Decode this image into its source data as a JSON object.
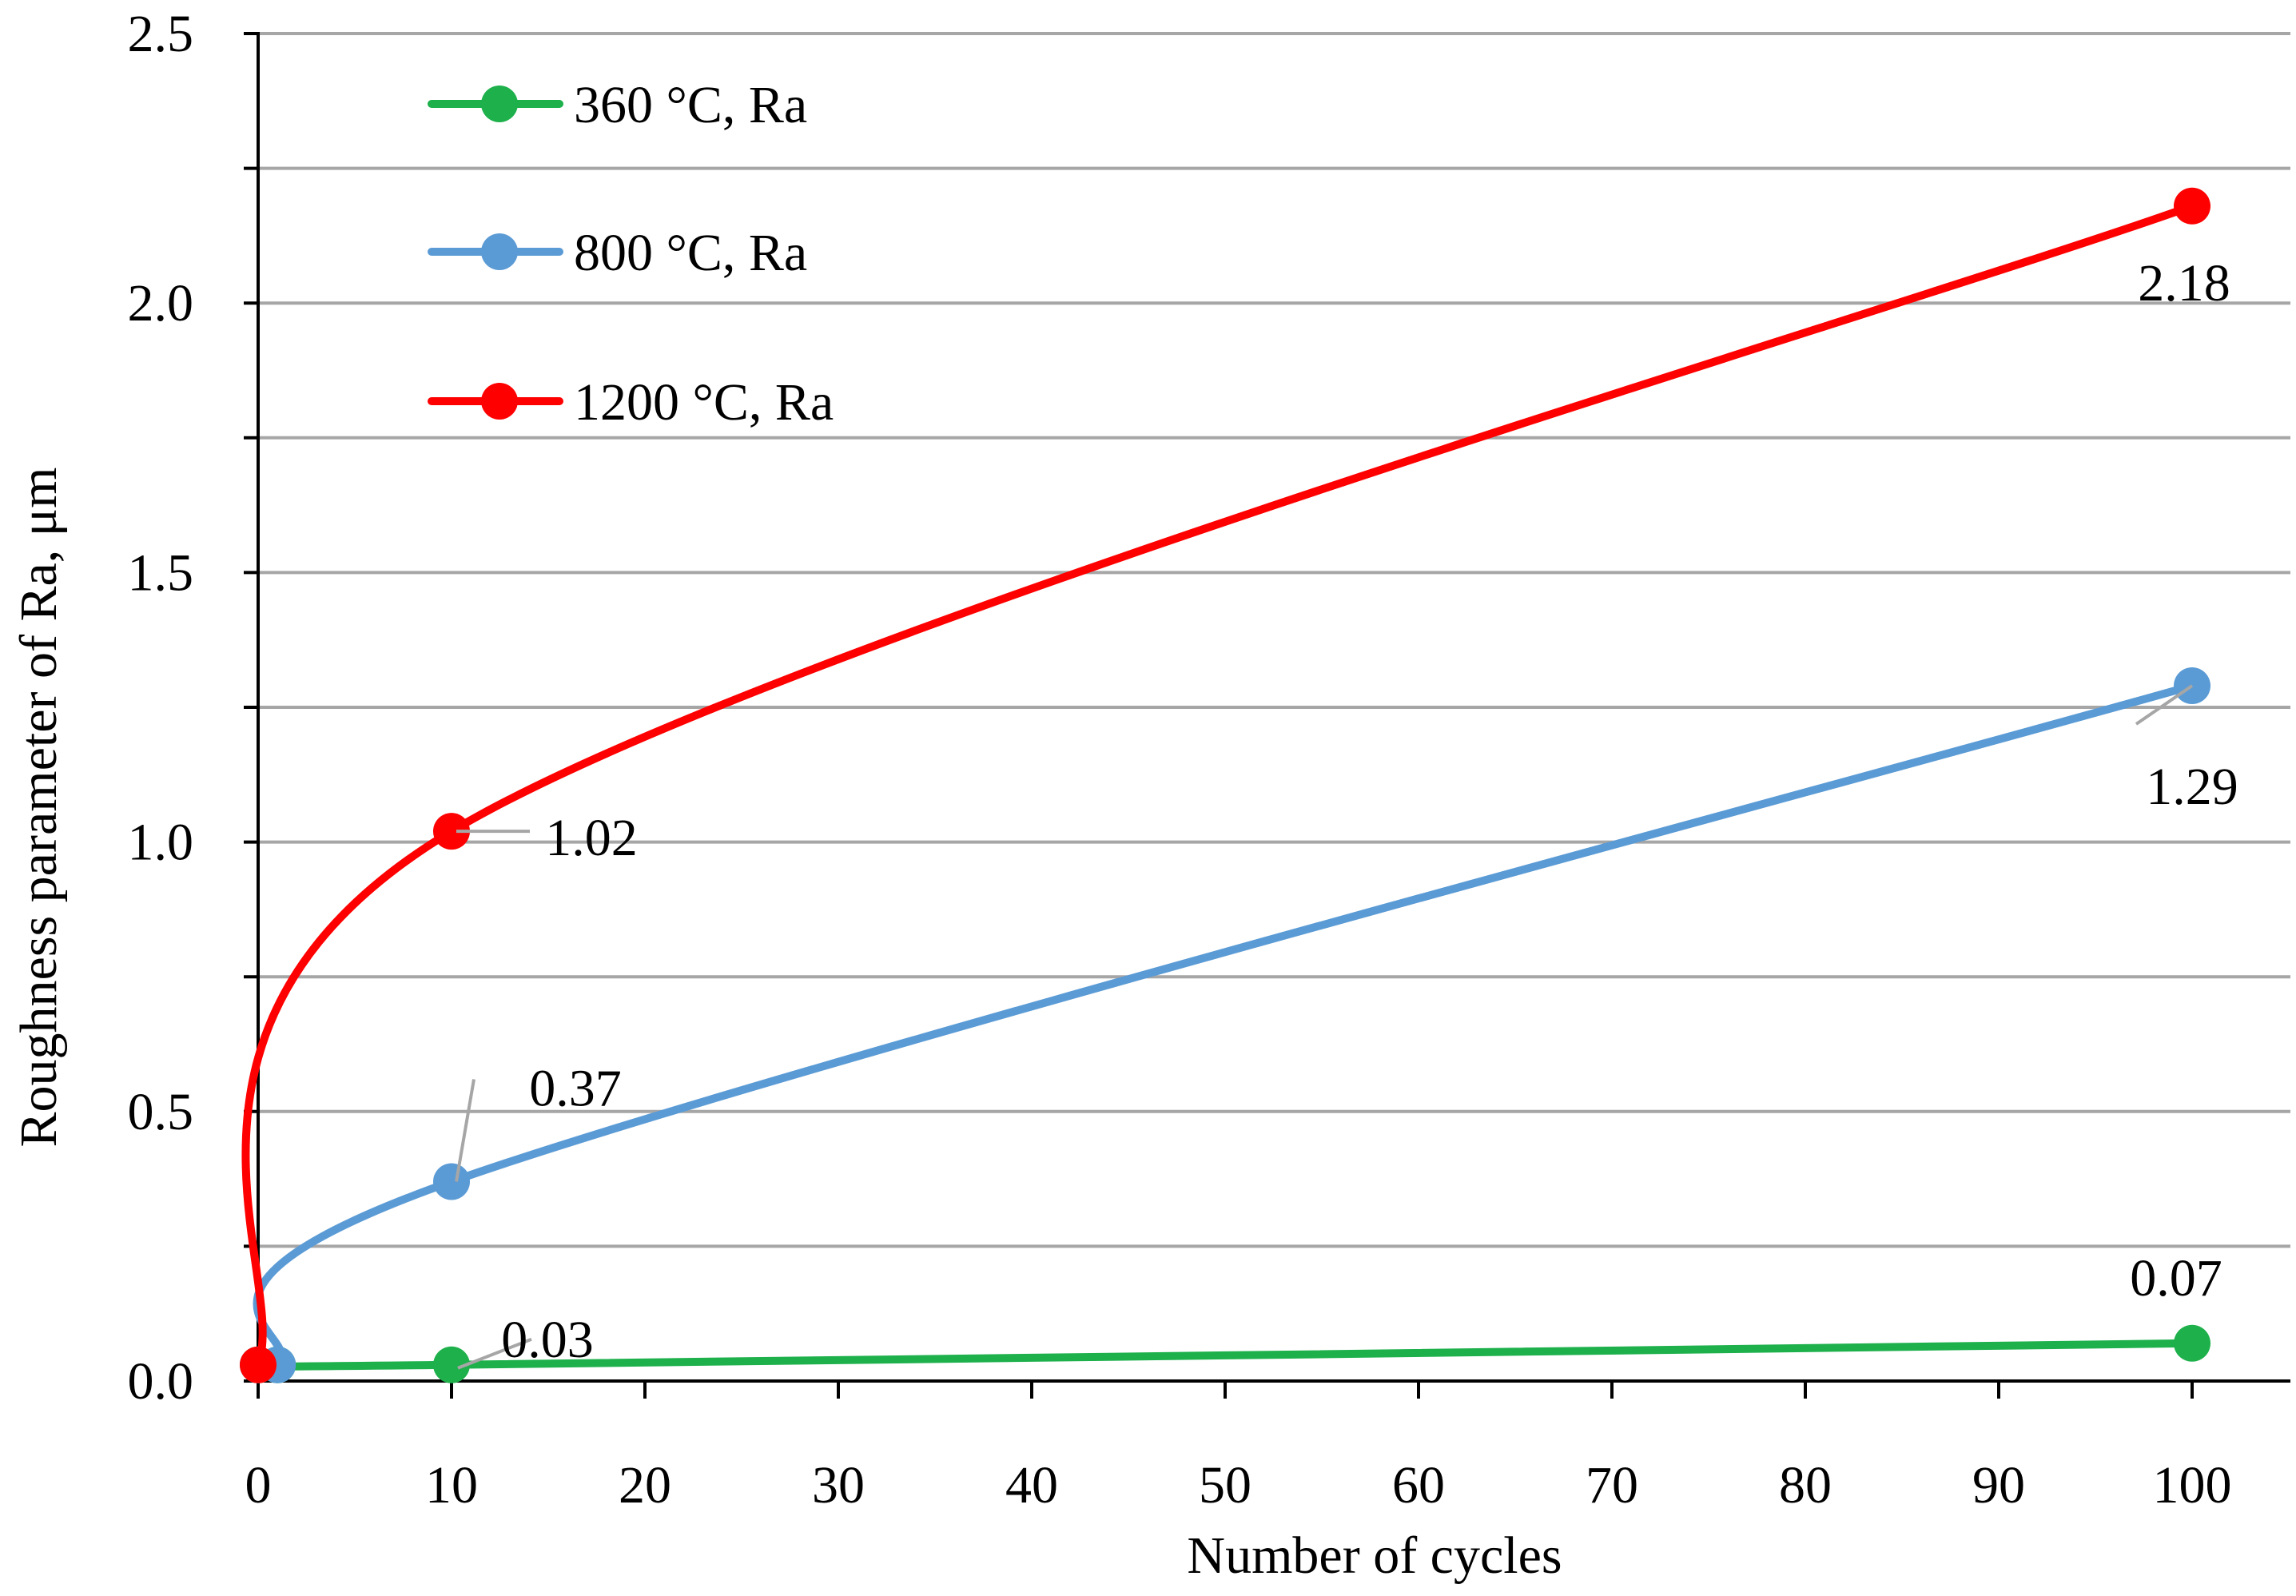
{
  "chart_data": {
    "type": "line",
    "title": "",
    "xlabel": "Number of cycles",
    "ylabel": "Roughness parameter of Ra, μm",
    "xlim": [
      0,
      100
    ],
    "ylim": [
      0,
      2.5
    ],
    "xticks": [
      0,
      10,
      20,
      30,
      40,
      50,
      60,
      70,
      80,
      90,
      100
    ],
    "yticks": [
      0.0,
      0.5,
      1.0,
      1.5,
      2.0,
      2.5
    ],
    "xtick_labels": [
      "0",
      "10",
      "20",
      "30",
      "40",
      "50",
      "60",
      "70",
      "80",
      "90",
      "100"
    ],
    "ytick_labels": [
      "0.0",
      "0.5",
      "1.0",
      "1.5",
      "2.0",
      "2.5"
    ],
    "grid": "horizontal",
    "legend_position": "top-left",
    "series": [
      {
        "name": "360 °C, Ra",
        "color": "#1DB04B",
        "x": [
          0,
          1,
          10,
          100
        ],
        "y": [
          0.03,
          0.03,
          0.03,
          0.07
        ],
        "labels": [
          {
            "text": "0.03",
            "x": 10,
            "y": 0.03
          },
          {
            "text": "0.07",
            "x": 100,
            "y": 0.07
          }
        ]
      },
      {
        "name": "800 °C, Ra",
        "color": "#5B9BD5",
        "x": [
          0,
          1,
          10,
          100
        ],
        "y": [
          0.03,
          0.03,
          0.37,
          1.29
        ],
        "labels": [
          {
            "text": "0.37",
            "x": 10,
            "y": 0.37
          },
          {
            "text": "1.29",
            "x": 100,
            "y": 1.29
          }
        ]
      },
      {
        "name": "1200 °C, Ra",
        "color": "#FF0000",
        "x": [
          0,
          10,
          100
        ],
        "y": [
          0.03,
          1.02,
          2.18
        ],
        "labels": [
          {
            "text": "1.02",
            "x": 10,
            "y": 1.02
          },
          {
            "text": "2.18",
            "x": 100,
            "y": 2.18
          }
        ]
      }
    ]
  },
  "colors": {
    "grid": "#A6A6A6",
    "axis": "#000000",
    "leader": "#A6A6A6"
  }
}
